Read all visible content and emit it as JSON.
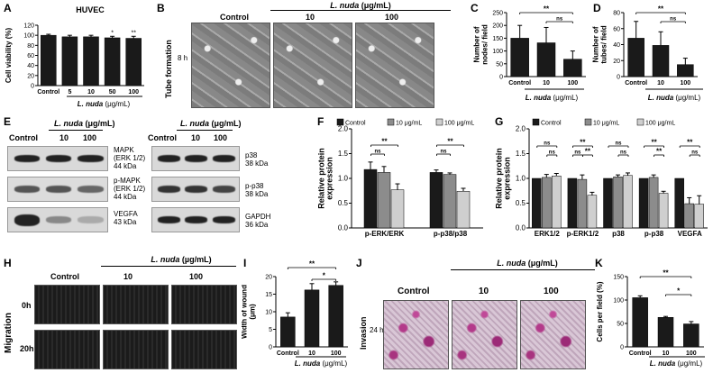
{
  "panels": {
    "A": "A",
    "B": "B",
    "C": "C",
    "D": "D",
    "E": "E",
    "F": "F",
    "G": "G",
    "H": "H",
    "I": "I",
    "J": "J",
    "K": "K"
  },
  "common": {
    "control": "Control",
    "species": "L. nuda",
    "unit": "(μg/mL)",
    "unit_alt": "(µg/mL)",
    "c10": "10",
    "c100": "100"
  },
  "panelA": {
    "title": "HUVEC",
    "ylabel": "Cell viability (%)",
    "categories": [
      "Control",
      "5",
      "10",
      "50",
      "100"
    ]
  },
  "panelB": {
    "row_label": "Tube formation",
    "time": "8 h"
  },
  "panelE": {
    "left_labels": [
      {
        "l1": "MAPK",
        "l2": "(ERK 1/2)",
        "l3": "44 kDa"
      },
      {
        "l1": "p-MAPK",
        "l2": "(ERK 1/2)",
        "l3": "44 kDa"
      },
      {
        "l1": "VEGFA",
        "l2": "43 kDa",
        "l3": ""
      }
    ],
    "right_labels": [
      {
        "l1": "p38",
        "l2": "38 kDa"
      },
      {
        "l1": "p-p38",
        "l2": "38 kDa"
      },
      {
        "l1": "GAPDH",
        "l2": "36 kDa"
      }
    ]
  },
  "panelH": {
    "row_label": "Migration",
    "t0": "0h",
    "t20": "20h"
  },
  "panelJ": {
    "row_label": "Invasion",
    "time": "24 h"
  },
  "legend": {
    "control": "Control",
    "c10": "10 μg/mL",
    "c100": "100 μg/mL"
  },
  "colors": {
    "black": "#1a1a1a",
    "gray": "#8c8c8c",
    "light": "#cfcfcf"
  },
  "chart_data": [
    {
      "panel": "A",
      "type": "bar",
      "title": "HUVEC",
      "categories": [
        "Control",
        "5",
        "10",
        "50",
        "100"
      ],
      "values": [
        100,
        97,
        97,
        95,
        94
      ],
      "errors": [
        2,
        3,
        3,
        3,
        4
      ],
      "sig": [
        "",
        "",
        "",
        "*",
        "**"
      ],
      "ylabel": "Cell viability (%)",
      "xlabel": "L. nuda (μg/mL)",
      "ylim": [
        0,
        120
      ],
      "yticks": [
        0,
        20,
        40,
        60,
        80,
        100,
        120
      ]
    },
    {
      "panel": "C",
      "type": "bar",
      "categories": [
        "Control",
        "10",
        "100"
      ],
      "values": [
        150,
        132,
        68
      ],
      "errors": [
        50,
        60,
        32
      ],
      "ylabel": "Number of nodes/ field",
      "xlabel": "L. nuda (μg/mL)",
      "ylim": [
        0,
        250
      ],
      "yticks": [
        0,
        50,
        100,
        150,
        200,
        250
      ],
      "brackets": [
        {
          "from": 0,
          "to": 2,
          "label": "**"
        },
        {
          "from": 1,
          "to": 2,
          "label": "ns"
        }
      ]
    },
    {
      "panel": "D",
      "type": "bar",
      "categories": [
        "Control",
        "10",
        "100"
      ],
      "values": [
        48,
        39,
        15
      ],
      "errors": [
        21,
        17,
        8
      ],
      "ylabel": "Number of tubes/ field",
      "xlabel": "L. nuda (μg/mL)",
      "ylim": [
        0,
        80
      ],
      "yticks": [
        0,
        20,
        40,
        60,
        80
      ],
      "brackets": [
        {
          "from": 0,
          "to": 2,
          "label": "**"
        },
        {
          "from": 1,
          "to": 2,
          "label": "ns"
        }
      ]
    },
    {
      "panel": "F",
      "type": "bar",
      "categories": [
        "p-ERK/ERK",
        "p-p38/p38"
      ],
      "series": [
        {
          "name": "Control",
          "values": [
            1.18,
            1.12
          ],
          "errors": [
            0.15,
            0.05
          ]
        },
        {
          "name": "10 μg/mL",
          "values": [
            1.12,
            1.08
          ],
          "errors": [
            0.12,
            0.03
          ]
        },
        {
          "name": "100 μg/mL",
          "values": [
            0.77,
            0.74
          ],
          "errors": [
            0.12,
            0.06
          ]
        }
      ],
      "ylabel": "Relative protein expression",
      "ylim": [
        0,
        2.0
      ],
      "yticks": [
        0.0,
        0.5,
        1.0,
        1.5,
        2.0
      ],
      "brackets": [
        {
          "group": 0,
          "from": 0,
          "to": 2,
          "label": "**"
        },
        {
          "group": 0,
          "from": 0,
          "to": 1,
          "label": "ns"
        },
        {
          "group": 1,
          "from": 0,
          "to": 2,
          "label": "**"
        },
        {
          "group": 1,
          "from": 0,
          "to": 1,
          "label": "ns"
        }
      ]
    },
    {
      "panel": "G",
      "type": "bar",
      "categories": [
        "ERK1/2",
        "p-ERK1/2",
        "p38",
        "p-p38",
        "VEGFA"
      ],
      "series": [
        {
          "name": "Control",
          "values": [
            1.0,
            1.0,
            1.0,
            1.0,
            1.0
          ],
          "errors": [
            0,
            0,
            0,
            0,
            0
          ]
        },
        {
          "name": "10 μg/mL",
          "values": [
            1.02,
            0.98,
            1.03,
            1.02,
            0.49
          ],
          "errors": [
            0.06,
            0.09,
            0.04,
            0.05,
            0.12
          ]
        },
        {
          "name": "100 μg/mL",
          "values": [
            1.05,
            0.66,
            1.06,
            0.7,
            0.48
          ],
          "errors": [
            0.05,
            0.06,
            0.05,
            0.04,
            0.17
          ]
        }
      ],
      "ylabel": "Relative protein expression",
      "ylim": [
        0,
        2.0
      ],
      "yticks": [
        0.0,
        0.5,
        1.0,
        1.5,
        2.0
      ],
      "brackets": [
        {
          "group": 0,
          "from": 0,
          "to": 2,
          "label": "ns"
        },
        {
          "group": 0,
          "from": 1,
          "to": 2,
          "label": "ns"
        },
        {
          "group": 1,
          "from": 0,
          "to": 2,
          "label": "**"
        },
        {
          "group": 1,
          "from": 0,
          "to": 1,
          "label": "ns"
        },
        {
          "group": 1,
          "from": 1,
          "to": 2,
          "label": "**"
        },
        {
          "group": 2,
          "from": 0,
          "to": 2,
          "label": "ns"
        },
        {
          "group": 2,
          "from": 1,
          "to": 2,
          "label": "ns"
        },
        {
          "group": 3,
          "from": 0,
          "to": 2,
          "label": "**"
        },
        {
          "group": 3,
          "from": 1,
          "to": 2,
          "label": "**"
        },
        {
          "group": 4,
          "from": 0,
          "to": 2,
          "label": "**"
        },
        {
          "group": 4,
          "from": 1,
          "to": 2,
          "label": "ns"
        }
      ]
    },
    {
      "panel": "I",
      "type": "bar",
      "categories": [
        "Control",
        "10",
        "100"
      ],
      "values": [
        8.5,
        16.2,
        17.5
      ],
      "errors": [
        1.2,
        1.8,
        1.0
      ],
      "ylabel": "Width of wound (μm)",
      "xlabel": "L. nuda (μg/mL)",
      "ylim": [
        0,
        20
      ],
      "yticks": [
        0,
        5,
        10,
        15,
        20
      ],
      "brackets": [
        {
          "from": 0,
          "to": 2,
          "label": "**"
        },
        {
          "from": 1,
          "to": 2,
          "label": "*"
        }
      ]
    },
    {
      "panel": "K",
      "type": "bar",
      "categories": [
        "Control",
        "10",
        "100"
      ],
      "values": [
        105,
        63,
        49
      ],
      "errors": [
        4,
        2,
        5
      ],
      "ylabel": "Cells per field (%)",
      "xlabel": "L. nuda (μg/mL)",
      "ylim": [
        0,
        150
      ],
      "yticks": [
        0,
        50,
        100,
        150
      ],
      "brackets": [
        {
          "from": 0,
          "to": 2,
          "label": "**"
        },
        {
          "from": 1,
          "to": 2,
          "label": "*"
        }
      ]
    }
  ]
}
